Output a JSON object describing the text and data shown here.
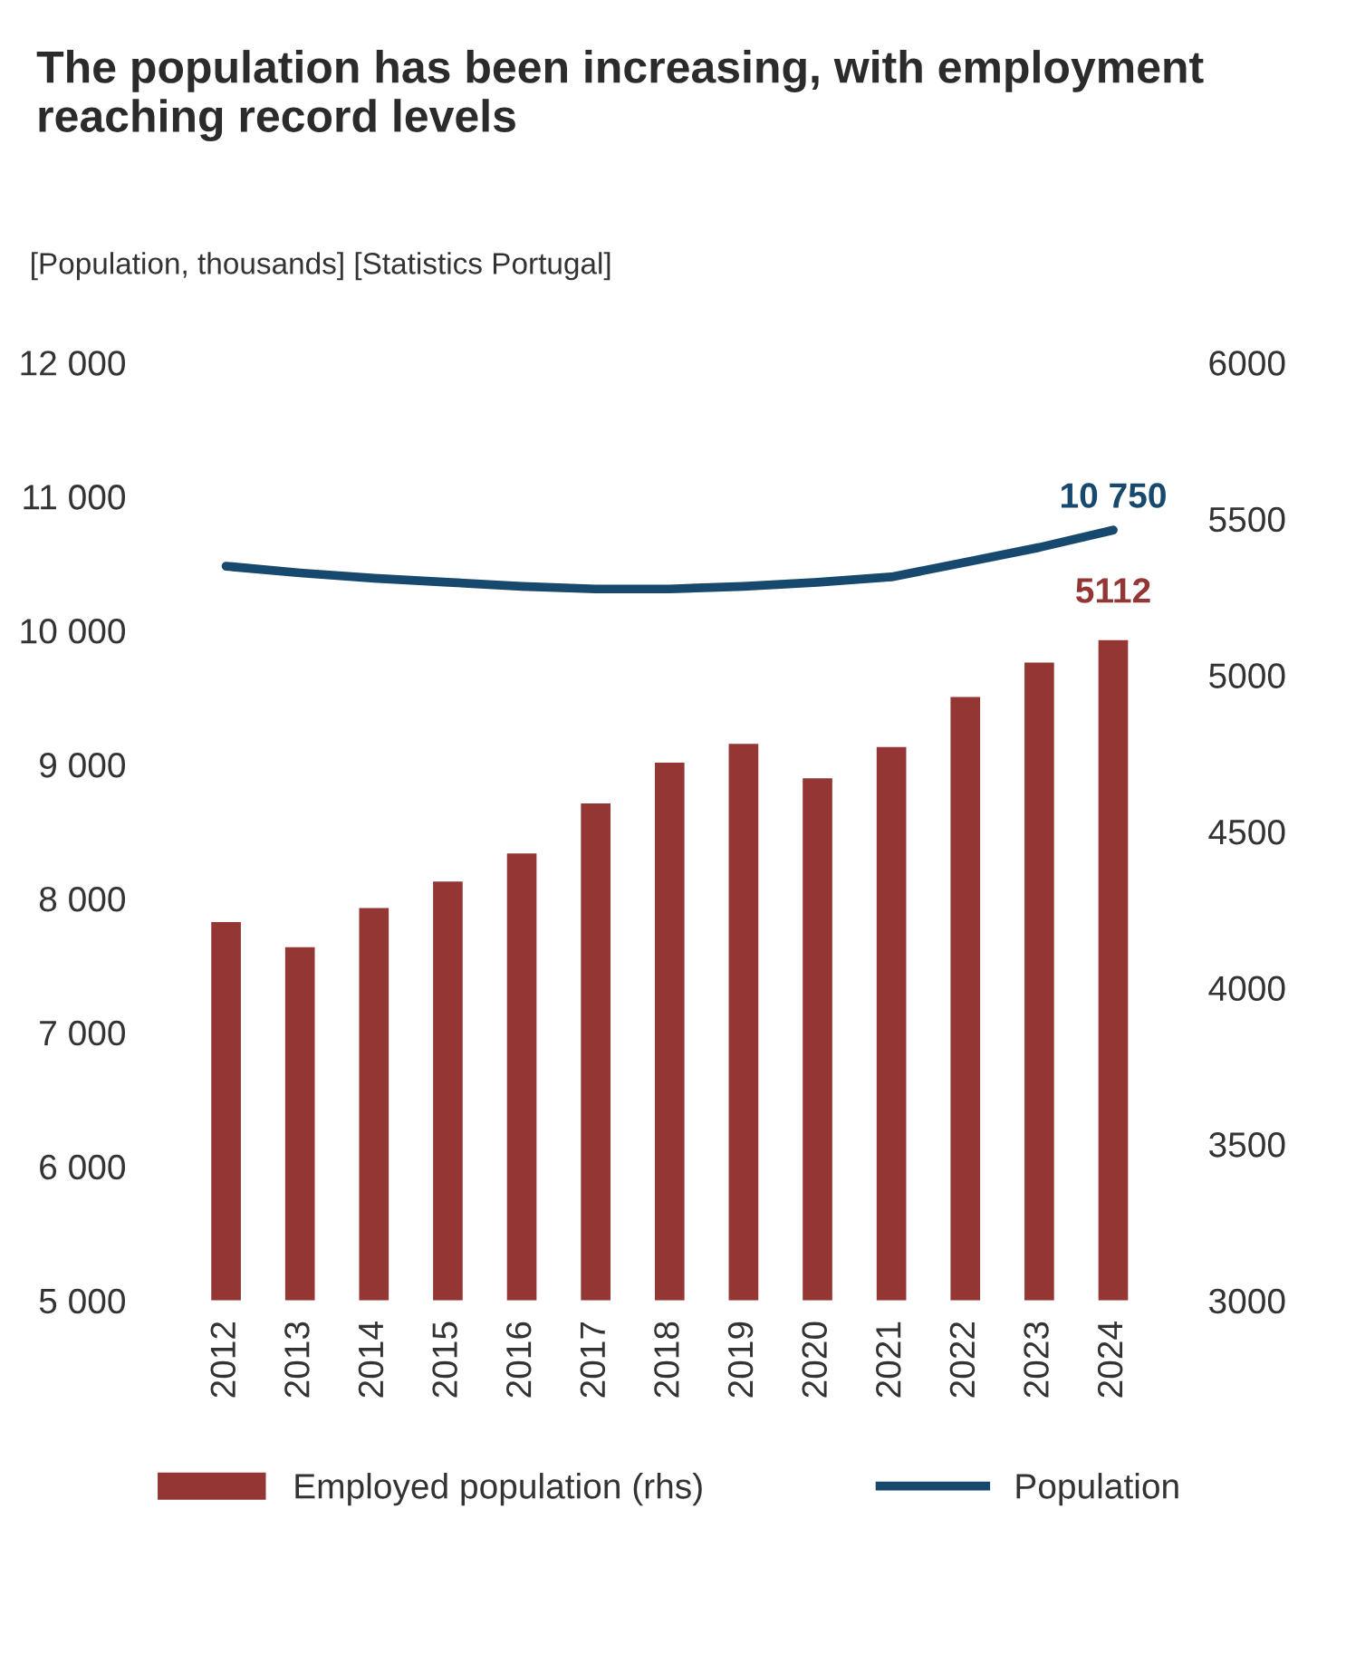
{
  "chart_data": {
    "type": "bar",
    "title": "The population has been increasing, with employment reaching record levels",
    "subtitle": "[Population, thousands] [Statistics Portugal]",
    "categories": [
      "2012",
      "2013",
      "2014",
      "2015",
      "2016",
      "2017",
      "2018",
      "2019",
      "2020",
      "2021",
      "2022",
      "2023",
      "2024"
    ],
    "series": [
      {
        "name": "Employed population (rhs)",
        "axis": "y2",
        "color": "#943634",
        "values": [
          4210,
          4130,
          4255,
          4340,
          4430,
          4590,
          4720,
          4780,
          4670,
          4770,
          4930,
          5040,
          5112
        ],
        "value_labels": [
          null,
          null,
          null,
          null,
          null,
          null,
          null,
          null,
          null,
          null,
          null,
          null,
          "5112"
        ]
      },
      {
        "name": "Population",
        "type": "line",
        "color": "#17496f",
        "values": [
          10480,
          10430,
          10390,
          10360,
          10330,
          10310,
          10310,
          10330,
          10360,
          10400,
          10510,
          10620,
          10750
        ],
        "value_labels": [
          null,
          null,
          null,
          null,
          null,
          null,
          null,
          null,
          null,
          null,
          null,
          null,
          "10 750"
        ]
      }
    ],
    "ylim": [
      5000,
      12000
    ],
    "yticks": [
      {
        "value": 5000,
        "label": "5 000"
      },
      {
        "value": 6000,
        "label": "6 000"
      },
      {
        "value": 7000,
        "label": "7 000"
      },
      {
        "value": 8000,
        "label": "8 000"
      },
      {
        "value": 9000,
        "label": "9 000"
      },
      {
        "value": 10000,
        "label": "10 000"
      },
      {
        "value": 11000,
        "label": "11 000"
      },
      {
        "value": 12000,
        "label": "12 000"
      }
    ],
    "y2lim": [
      3000,
      6000
    ],
    "y2ticks": [
      3000,
      3500,
      4000,
      4500,
      5000,
      5500,
      6000
    ],
    "legend": "bottom",
    "grid": false,
    "line_style": "solid",
    "marker": "none"
  }
}
